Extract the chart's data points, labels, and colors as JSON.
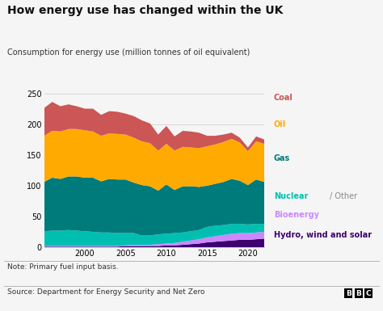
{
  "title": "How energy use has changed within the UK",
  "subtitle": "Consumption for energy use (million tonnes of oil equivalent)",
  "note": "Note: Primary fuel input basis.",
  "source": "Source: Department for Energy Security and Net Zero",
  "years": [
    1995,
    1996,
    1997,
    1998,
    1999,
    2000,
    2001,
    2002,
    2003,
    2004,
    2005,
    2006,
    2007,
    2008,
    2009,
    2010,
    2011,
    2012,
    2013,
    2014,
    2015,
    2016,
    2017,
    2018,
    2019,
    2020,
    2021,
    2022
  ],
  "hydro_wind_solar": [
    1,
    1,
    1,
    1,
    1,
    1,
    1,
    1,
    1,
    1,
    2,
    2,
    2,
    2,
    2,
    3,
    3,
    4,
    5,
    6,
    8,
    9,
    10,
    11,
    12,
    12,
    13,
    14
  ],
  "bioenergy": [
    1,
    1,
    1,
    1,
    1,
    1,
    1,
    1,
    1,
    1,
    1,
    2,
    2,
    2,
    3,
    3,
    4,
    5,
    6,
    7,
    8,
    9,
    10,
    11,
    11,
    11,
    11,
    11
  ],
  "nuclear_other": [
    24,
    25,
    25,
    26,
    25,
    24,
    23,
    22,
    22,
    21,
    20,
    19,
    15,
    15,
    16,
    16,
    16,
    15,
    15,
    15,
    17,
    17,
    16,
    16,
    15,
    14,
    14,
    13
  ],
  "gas": [
    80,
    86,
    84,
    87,
    88,
    87,
    88,
    83,
    87,
    87,
    87,
    82,
    82,
    80,
    71,
    80,
    70,
    75,
    73,
    70,
    67,
    68,
    70,
    73,
    70,
    64,
    72,
    68
  ],
  "oil": [
    75,
    76,
    77,
    77,
    77,
    77,
    75,
    74,
    74,
    74,
    73,
    73,
    71,
    70,
    65,
    66,
    64,
    64,
    63,
    63,
    64,
    64,
    65,
    65,
    62,
    55,
    62,
    62
  ],
  "coal": [
    45,
    47,
    41,
    40,
    37,
    35,
    37,
    34,
    36,
    36,
    34,
    35,
    34,
    32,
    26,
    29,
    23,
    26,
    26,
    25,
    17,
    14,
    12,
    10,
    8,
    6,
    8,
    7
  ],
  "colors": {
    "hydro_wind_solar": "#3d006e",
    "bioenergy": "#cc88ff",
    "nuclear_other": "#00bfb0",
    "gas": "#007b7b",
    "oil": "#ffaa00",
    "coal": "#cc5555"
  },
  "ylim": [
    0,
    250
  ],
  "yticks": [
    0,
    50,
    100,
    150,
    200,
    250
  ],
  "xlim": [
    1995,
    2022
  ],
  "bg_color": "#f5f5f5",
  "title_color": "#111111",
  "subtitle_color": "#333333",
  "note_color": "#333333",
  "source_color": "#333333",
  "grid_color": "#cccccc",
  "legend_entries": [
    {
      "label": "Coal",
      "color": "#cc5555",
      "extra": null,
      "extra_color": null
    },
    {
      "label": "Oil",
      "color": "#ffaa00",
      "extra": null,
      "extra_color": null
    },
    {
      "label": "Gas",
      "color": "#007b7b",
      "extra": null,
      "extra_color": null
    },
    {
      "label": "Nuclear",
      "color": "#00bfb0",
      "extra": "/ Other",
      "extra_color": "#888888"
    },
    {
      "label": "Bioenergy",
      "color": "#cc88ff",
      "extra": null,
      "extra_color": null
    },
    {
      "label": "Hydro, wind and solar",
      "color": "#3d006e",
      "extra": null,
      "extra_color": null
    }
  ]
}
